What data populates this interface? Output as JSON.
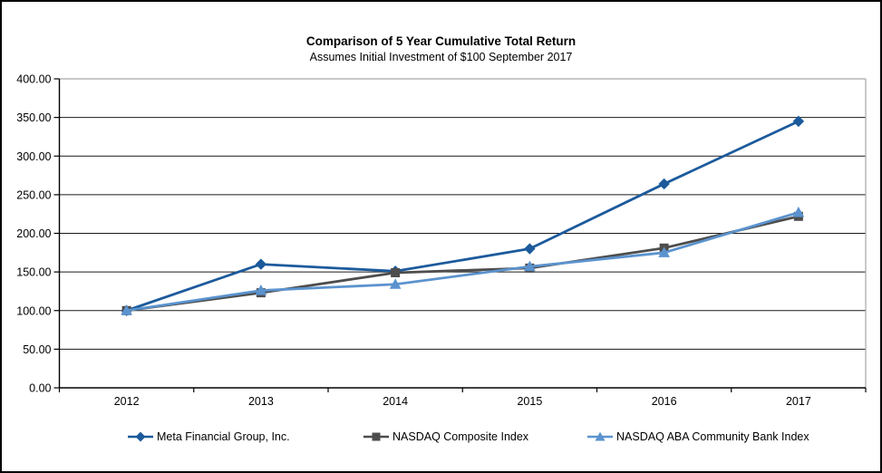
{
  "chart_data": {
    "type": "line",
    "title": "Comparison of 5 Year Cumulative Total Return",
    "subtitle": "Assumes Initial Investment of $100 September 2017",
    "categories": [
      "2012",
      "2013",
      "2014",
      "2015",
      "2016",
      "2017"
    ],
    "ylim": [
      0,
      400
    ],
    "ytick_step": 50,
    "yticks": [
      0,
      50,
      100,
      150,
      200,
      250,
      300,
      350,
      400
    ],
    "ytick_labels": [
      "0.00",
      "50.00",
      "100.00",
      "150.00",
      "200.00",
      "250.00",
      "300.00",
      "350.00",
      "400.00"
    ],
    "grid": true,
    "legend_position": "bottom",
    "series": [
      {
        "name": "Meta Financial Group, Inc.",
        "marker": "diamond",
        "color": "#1C5A9C",
        "values": [
          100,
          160,
          151,
          180,
          264,
          345
        ]
      },
      {
        "name": "NASDAQ Composite Index",
        "marker": "square",
        "color": "#4D4D4D",
        "values": [
          100,
          123,
          149,
          155,
          181,
          222
        ]
      },
      {
        "name": "NASDAQ ABA Community Bank Index",
        "marker": "triangle",
        "color": "#5B93CE",
        "values": [
          100,
          126,
          134,
          157,
          175,
          227
        ]
      }
    ],
    "colors": {
      "gridline": "#1a1a1a",
      "axis": "#000000",
      "plot_border": "#a6a6a6",
      "background": "#ffffff"
    }
  }
}
